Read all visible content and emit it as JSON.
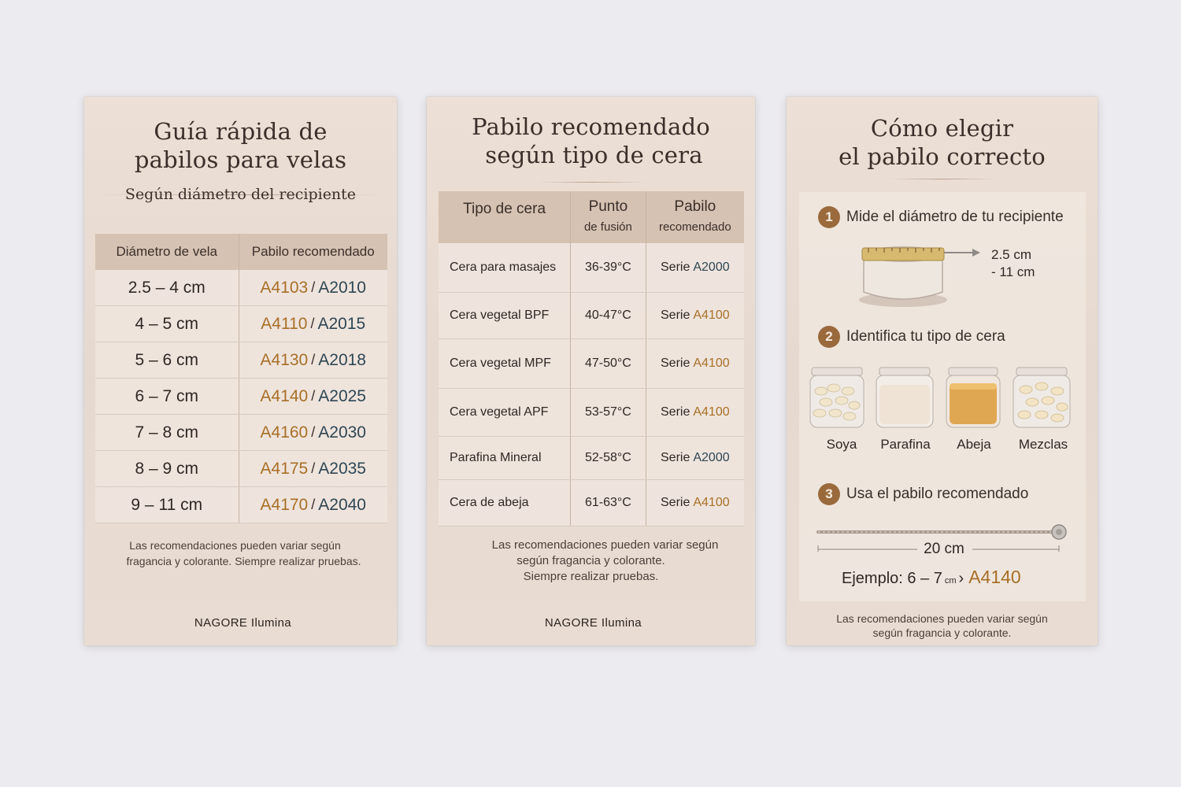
{
  "card1": {
    "title_line1": "Guía rápida de",
    "title_line2": "pabilos para velas",
    "subtitle": "Según diámetro del recipiente",
    "columns": [
      "Diámetro de vela",
      "Pabilo recomendado"
    ],
    "rows": [
      {
        "diameter": "2.5 – 4 cm",
        "wick_a": "A4103",
        "sep": "/",
        "wick_b": "A2010"
      },
      {
        "diameter": "4 – 5 cm",
        "wick_a": "A4110",
        "sep": "/",
        "wick_b": "A2015"
      },
      {
        "diameter": "5 – 6 cm",
        "wick_a": "A4130",
        "sep": "/",
        "wick_b": "A2018"
      },
      {
        "diameter": "6 – 7 cm",
        "wick_a": "A4140",
        "sep": "/",
        "wick_b": "A2025"
      },
      {
        "diameter": "7 – 8 cm",
        "wick_a": "A4160",
        "sep": "/",
        "wick_b": "A2030"
      },
      {
        "diameter": "8 – 9 cm",
        "wick_a": "A4175",
        "sep": "/",
        "wick_b": "A2035"
      },
      {
        "diameter": "9 – 11 cm",
        "wick_a": "A4170",
        "sep": "/",
        "wick_b": "A2040"
      }
    ],
    "note_line1": "Las recomendaciones pueden variar según",
    "note_line2": "fragancia y colorante. Siempre realizar pruebas.",
    "brand": "NAGORE Ilumina"
  },
  "card2": {
    "title_line1": "Pabilo recomendado",
    "title_line2": "según tipo de cera",
    "col_a": "Tipo de cera",
    "col_b_line1": "Punto",
    "col_b_line2": "de fusión",
    "col_c_line1": "Pabilo",
    "col_c_line2": "recomendado",
    "rows": [
      {
        "wax": "Cera para masajes",
        "melt": "36-39°C",
        "prefix": "Serie",
        "series": "A2000",
        "accent": "slate"
      },
      {
        "wax": "Cera vegetal BPF",
        "melt": "40-47°C",
        "prefix": "Serie",
        "series": "A4100",
        "accent": "gold"
      },
      {
        "wax": "Cera vegetal MPF",
        "melt": "47-50°C",
        "prefix": "Serie",
        "series": "A4100",
        "accent": "gold"
      },
      {
        "wax": "Cera vegetal APF",
        "melt": "53-57°C",
        "prefix": "Serie",
        "series": "A4100",
        "accent": "gold"
      },
      {
        "wax": "Parafina Mineral",
        "melt": "52-58°C",
        "prefix": "Serie",
        "series": "A2000",
        "accent": "slate"
      },
      {
        "wax": "Cera de abeja",
        "melt": "61-63°C",
        "prefix": "Serie",
        "series": "A4100",
        "accent": "gold"
      }
    ],
    "note_line1": "Las recomendaciones pueden variar según",
    "note_line2": "según fragancia y colorante.",
    "note_line3": "Siempre realizar pruebas.",
    "brand": "NAGORE Ilumina"
  },
  "card3": {
    "title_line1": "Cómo elegir",
    "title_line2": "el pabilo correcto",
    "step1_num": "1",
    "step1": "Mide el diámetro de tu recipiente",
    "range_line1": "2.5 cm",
    "range_line2": "- 11 cm",
    "step2_num": "2",
    "step2": "Identifica tu tipo de cera",
    "waxes": [
      "Soya",
      "Parafina",
      "Abeja",
      "Mezclas"
    ],
    "step3_num": "3",
    "step3": "Usa el pabilo recomendado",
    "wick_length": "20 cm",
    "example_label": "Ejemplo: 6 – 7",
    "example_unit": "cm",
    "example_arrow": "›",
    "example_wick": "A4140",
    "note_line1": "Las recomendaciones pueden variar según",
    "note_line2": "según fragancia y colorante."
  },
  "colors": {
    "background": "#ecebef",
    "card": "#e8dcd2",
    "table_header": "#d6c2b2",
    "gold_accent": "#a86f27",
    "slate_accent": "#2f4654",
    "step_badge": "#9a6a3c"
  }
}
